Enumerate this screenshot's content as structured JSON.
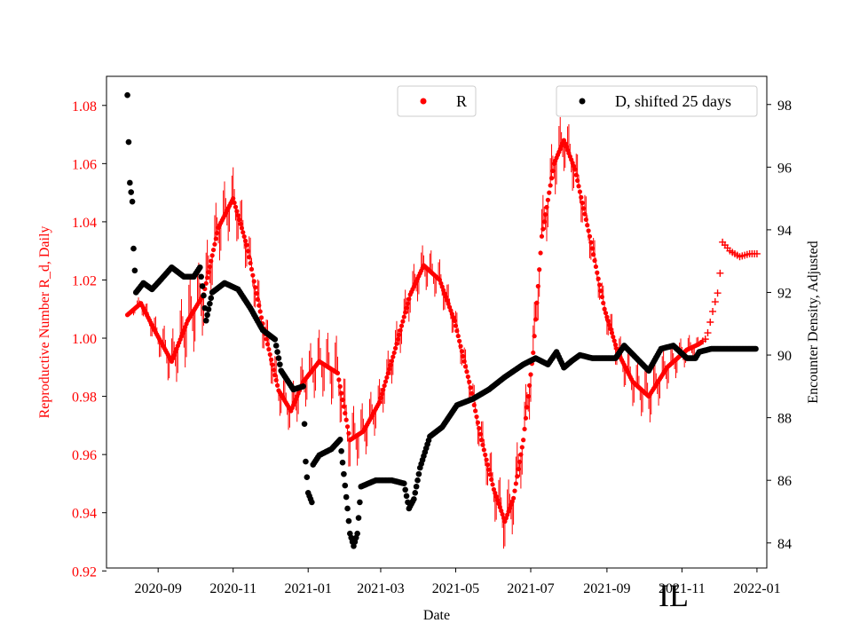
{
  "colors": {
    "r_series": "#ff0000",
    "d_series": "#000000",
    "frame": "#000000"
  },
  "chart_data": {
    "type": "scatter",
    "xlabel": "Date",
    "ylabel_left": "Reproductive Number R_d, Daily",
    "ylabel_right": "Encounter Density, Adjusted",
    "corner_label": "IL",
    "x_ticks": [
      "2020-09",
      "2020-11",
      "2021-01",
      "2021-03",
      "2021-05",
      "2021-07",
      "2021-09",
      "2021-11",
      "2022-01"
    ],
    "y_left_ticks": [
      "0.92",
      "0.94",
      "0.96",
      "0.98",
      "1.00",
      "1.02",
      "1.04",
      "1.06",
      "1.08"
    ],
    "y_right_ticks": [
      "84",
      "86",
      "88",
      "90",
      "92",
      "94",
      "96",
      "98"
    ],
    "x_range": [
      "2020-07-21",
      "2022-01-09"
    ],
    "y_left_range": [
      0.921,
      1.09
    ],
    "y_right_range": [
      83.2,
      98.9
    ],
    "grid": false,
    "legend": [
      {
        "label": "R",
        "placement": "top-center"
      },
      {
        "label": "D, shifted 25 days",
        "placement": "top-right"
      }
    ],
    "series": [
      {
        "name": "R",
        "axis": "left",
        "color": "#ff0000",
        "points": [
          [
            "2020-08-07",
            1.008
          ],
          [
            "2020-08-18",
            1.012
          ],
          [
            "2020-08-30",
            1.002
          ],
          [
            "2020-09-12",
            0.992
          ],
          [
            "2020-09-25",
            1.006
          ],
          [
            "2020-10-08",
            1.015
          ],
          [
            "2020-10-20",
            1.038
          ],
          [
            "2020-11-01",
            1.048
          ],
          [
            "2020-11-12",
            1.032
          ],
          [
            "2020-11-25",
            1.005
          ],
          [
            "2020-12-08",
            0.982
          ],
          [
            "2020-12-18",
            0.975
          ],
          [
            "2020-12-28",
            0.985
          ],
          [
            "2021-01-10",
            0.992
          ],
          [
            "2021-01-25",
            0.988
          ],
          [
            "2021-02-04",
            0.965
          ],
          [
            "2021-02-15",
            0.968
          ],
          [
            "2021-02-28",
            0.978
          ],
          [
            "2021-03-12",
            0.995
          ],
          [
            "2021-03-25",
            1.015
          ],
          [
            "2021-04-05",
            1.025
          ],
          [
            "2021-04-18",
            1.02
          ],
          [
            "2021-04-30",
            1.006
          ],
          [
            "2021-05-12",
            0.985
          ],
          [
            "2021-05-22",
            0.965
          ],
          [
            "2021-06-01",
            0.948
          ],
          [
            "2021-06-10",
            0.937
          ],
          [
            "2021-06-17",
            0.945
          ],
          [
            "2021-06-25",
            0.965
          ],
          [
            "2021-07-03",
            0.995
          ],
          [
            "2021-07-10",
            1.035
          ],
          [
            "2021-07-20",
            1.06
          ],
          [
            "2021-07-28",
            1.068
          ],
          [
            "2021-08-06",
            1.058
          ],
          [
            "2021-08-18",
            1.035
          ],
          [
            "2021-08-30",
            1.01
          ],
          [
            "2021-09-10",
            0.995
          ],
          [
            "2021-09-22",
            0.985
          ],
          [
            "2021-10-05",
            0.98
          ],
          [
            "2021-10-20",
            0.99
          ],
          [
            "2021-11-05",
            0.996
          ],
          [
            "2021-11-15",
            0.998
          ],
          [
            "2021-11-21",
            1.0
          ],
          [
            "2021-11-27",
            1.011
          ],
          [
            "2021-12-01",
            1.017
          ],
          [
            "2021-12-04",
            1.033
          ],
          [
            "2021-12-10",
            1.03
          ],
          [
            "2021-12-18",
            1.028
          ],
          [
            "2021-12-26",
            1.029
          ],
          [
            "2022-01-01",
            1.029
          ]
        ],
        "oscillation_amplitude": [
          [
            "2020-08-07",
            0.001
          ],
          [
            "2020-09-01",
            0.006
          ],
          [
            "2020-09-25",
            0.015
          ],
          [
            "2020-10-25",
            0.012
          ],
          [
            "2020-11-15",
            0.009
          ],
          [
            "2020-12-15",
            0.008
          ],
          [
            "2021-01-25",
            0.013
          ],
          [
            "2021-03-01",
            0.008
          ],
          [
            "2021-04-05",
            0.008
          ],
          [
            "2021-05-10",
            0.006
          ],
          [
            "2021-06-01",
            0.01
          ],
          [
            "2021-06-20",
            0.012
          ],
          [
            "2021-07-20",
            0.012
          ],
          [
            "2021-08-30",
            0.006
          ],
          [
            "2021-10-05",
            0.01
          ],
          [
            "2021-11-12",
            0.004
          ],
          [
            "2021-11-18",
            0.0
          ]
        ]
      },
      {
        "name": "D, shifted 25 days",
        "axis": "right",
        "color": "#000000",
        "points": [
          [
            "2020-08-07",
            98.3
          ],
          [
            "2020-08-08",
            96.8
          ],
          [
            "2020-08-09",
            95.5
          ],
          [
            "2020-08-10",
            95.2
          ],
          [
            "2020-08-11",
            94.9
          ],
          [
            "2020-08-12",
            93.4
          ],
          [
            "2020-08-14",
            92.0
          ],
          [
            "2020-08-20",
            92.3
          ],
          [
            "2020-08-27",
            92.1
          ],
          [
            "2020-09-03",
            92.4
          ],
          [
            "2020-09-12",
            92.8
          ],
          [
            "2020-09-22",
            92.5
          ],
          [
            "2020-09-30",
            92.5
          ],
          [
            "2020-10-05",
            92.8
          ],
          [
            "2020-10-08",
            91.9
          ],
          [
            "2020-10-10",
            91.1
          ],
          [
            "2020-10-15",
            92.0
          ],
          [
            "2020-10-25",
            92.3
          ],
          [
            "2020-11-05",
            92.1
          ],
          [
            "2020-11-15",
            91.5
          ],
          [
            "2020-11-25",
            90.8
          ],
          [
            "2020-12-05",
            90.5
          ],
          [
            "2020-12-10",
            89.5
          ],
          [
            "2020-12-15",
            89.2
          ],
          [
            "2020-12-20",
            88.9
          ],
          [
            "2020-12-28",
            89.0
          ],
          [
            "2020-12-30",
            86.6
          ],
          [
            "2021-01-01",
            85.6
          ],
          [
            "2021-01-04",
            85.3
          ],
          [
            "2021-01-05",
            86.5
          ],
          [
            "2021-01-10",
            86.8
          ],
          [
            "2021-01-20",
            87.0
          ],
          [
            "2021-01-27",
            87.3
          ],
          [
            "2021-01-30",
            86.2
          ],
          [
            "2021-02-02",
            85.1
          ],
          [
            "2021-02-04",
            84.3
          ],
          [
            "2021-02-07",
            83.9
          ],
          [
            "2021-02-10",
            84.3
          ],
          [
            "2021-02-13",
            85.8
          ],
          [
            "2021-02-25",
            86.0
          ],
          [
            "2021-03-10",
            86.0
          ],
          [
            "2021-03-20",
            85.9
          ],
          [
            "2021-03-24",
            85.1
          ],
          [
            "2021-03-28",
            85.4
          ],
          [
            "2021-04-02",
            86.4
          ],
          [
            "2021-04-10",
            87.4
          ],
          [
            "2021-04-20",
            87.7
          ],
          [
            "2021-05-02",
            88.4
          ],
          [
            "2021-05-15",
            88.6
          ],
          [
            "2021-05-28",
            88.9
          ],
          [
            "2021-06-10",
            89.3
          ],
          [
            "2021-06-25",
            89.7
          ],
          [
            "2021-07-05",
            89.9
          ],
          [
            "2021-07-15",
            89.7
          ],
          [
            "2021-07-22",
            90.1
          ],
          [
            "2021-07-28",
            89.6
          ],
          [
            "2021-08-03",
            89.8
          ],
          [
            "2021-08-10",
            90.0
          ],
          [
            "2021-08-20",
            89.9
          ],
          [
            "2021-08-30",
            89.9
          ],
          [
            "2021-09-08",
            89.9
          ],
          [
            "2021-09-15",
            90.3
          ],
          [
            "2021-09-25",
            89.9
          ],
          [
            "2021-10-05",
            89.5
          ],
          [
            "2021-10-15",
            90.2
          ],
          [
            "2021-10-25",
            90.3
          ],
          [
            "2021-11-05",
            89.9
          ],
          [
            "2021-11-12",
            89.9
          ],
          [
            "2021-11-15",
            90.1
          ],
          [
            "2021-11-25",
            90.2
          ],
          [
            "2021-12-10",
            90.2
          ],
          [
            "2021-12-31",
            90.2
          ]
        ]
      }
    ]
  }
}
